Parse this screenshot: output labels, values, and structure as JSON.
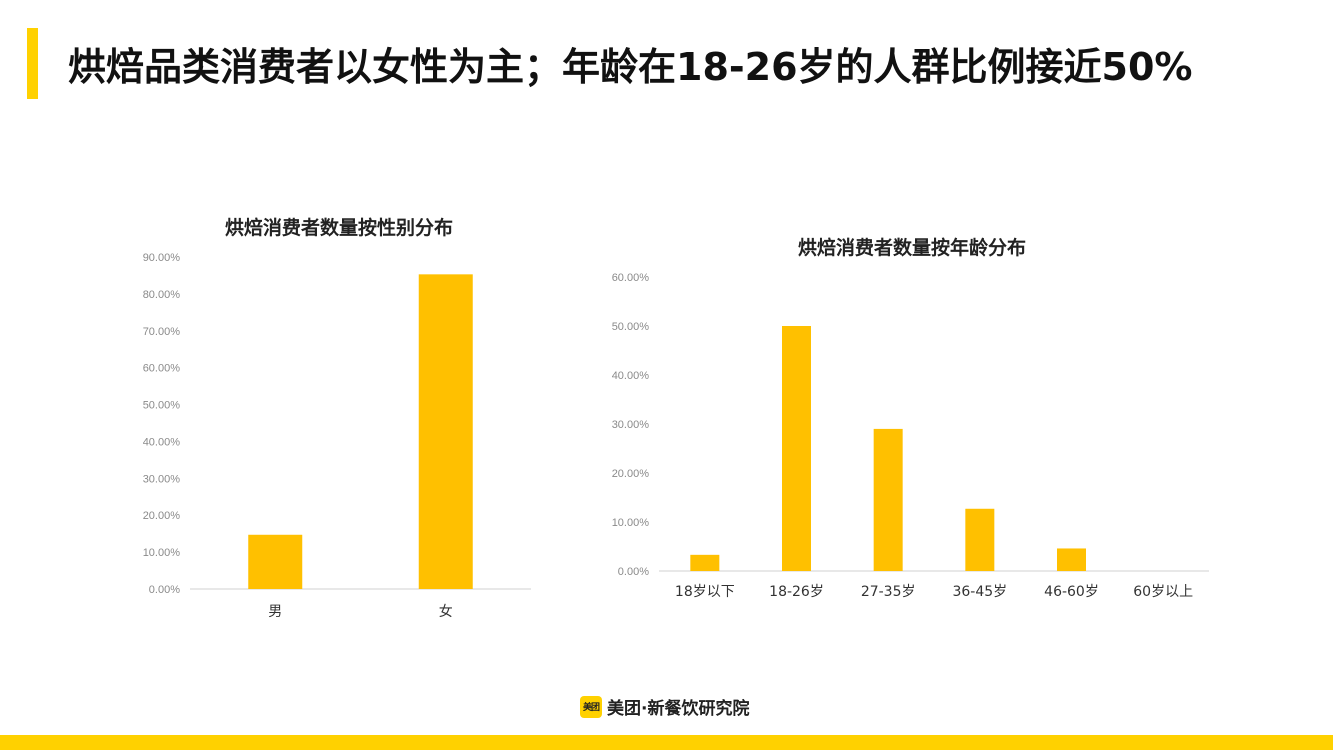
{
  "page": {
    "title": "烘焙品类消费者以女性为主；年龄在18-26岁的人群比例接近50%",
    "accent_color": "#FFD100",
    "bar_color": "#FFC000"
  },
  "footer": {
    "logo_badge": "美团",
    "logo_text": "美团·新餐饮研究院"
  },
  "chart_data": [
    {
      "type": "bar",
      "title": "烘焙消费者数量按性别分布",
      "categories": [
        "男",
        "女"
      ],
      "values": [
        14.7,
        85.3
      ],
      "ylim": [
        0,
        90
      ],
      "yticks": [
        "0.00%",
        "10.00%",
        "20.00%",
        "30.00%",
        "40.00%",
        "50.00%",
        "60.00%",
        "70.00%",
        "80.00%",
        "90.00%"
      ],
      "grid": false,
      "legend": "none"
    },
    {
      "type": "bar",
      "title": "烘焙消费者数量按年龄分布",
      "categories": [
        "18岁以下",
        "18-26岁",
        "27-35岁",
        "36-45岁",
        "46-60岁",
        "60岁以上"
      ],
      "values": [
        3.3,
        50.0,
        29.0,
        12.7,
        4.6,
        0.0
      ],
      "ylim": [
        0,
        60
      ],
      "yticks": [
        "0.00%",
        "10.00%",
        "20.00%",
        "30.00%",
        "40.00%",
        "50.00%",
        "60.00%"
      ],
      "grid": false,
      "legend": "none"
    }
  ]
}
